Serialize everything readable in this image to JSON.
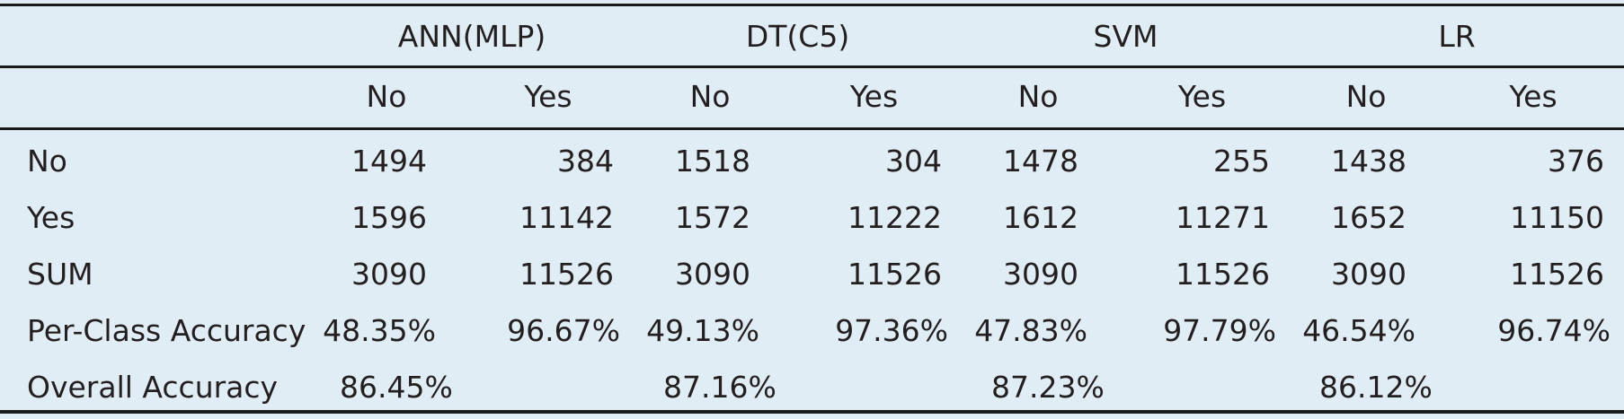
{
  "table": {
    "models": [
      "ANN(MLP)",
      "DT(C5)",
      "SVM",
      "LR"
    ],
    "class_headers": [
      "No",
      "Yes",
      "No",
      "Yes",
      "No",
      "Yes",
      "No",
      "Yes"
    ],
    "rows": [
      {
        "label": "No",
        "values": [
          "1494",
          "384",
          "1518",
          "304",
          "1478",
          "255",
          "1438",
          "376"
        ]
      },
      {
        "label": "Yes",
        "values": [
          "1596",
          "11142",
          "1572",
          "11222",
          "1612",
          "11271",
          "1652",
          "11150"
        ]
      },
      {
        "label": "SUM",
        "values": [
          "3090",
          "11526",
          "3090",
          "11526",
          "3090",
          "11526",
          "3090",
          "11526"
        ]
      },
      {
        "label": "Per-Class Accuracy",
        "values": [
          "48.35%",
          "96.67%",
          "49.13%",
          "97.36%",
          "47.83%",
          "97.79%",
          "46.54%",
          "96.74%"
        ]
      }
    ],
    "overall": {
      "label": "Overall Accuracy",
      "values": [
        "86.45%",
        "87.16%",
        "87.23%",
        "86.12%"
      ]
    }
  },
  "colors": {
    "background": "#e1edf5",
    "rules": "#1a1a1a",
    "text": "#231f20"
  }
}
